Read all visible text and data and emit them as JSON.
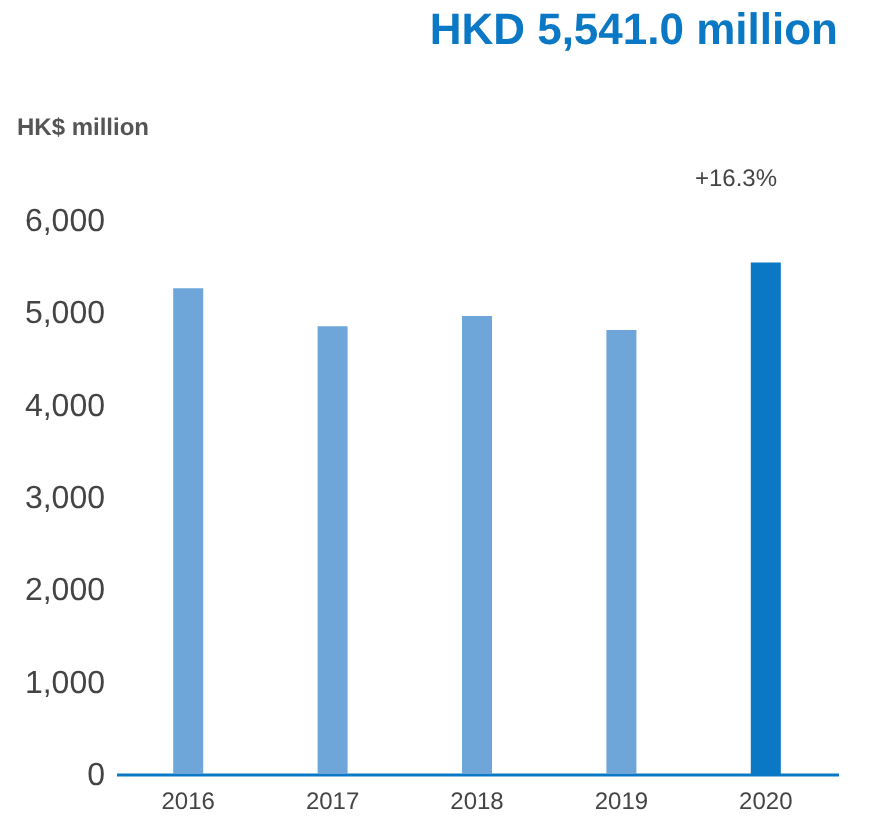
{
  "chart_data": {
    "type": "bar",
    "title": "HKD 5,541.0 million",
    "ylabel": "HK$ million",
    "categories": [
      "2016",
      "2017",
      "2018",
      "2019",
      "2020"
    ],
    "values": [
      5260,
      4850,
      4960,
      4810,
      5541
    ],
    "colors": [
      "#6fa6d9",
      "#6fa6d9",
      "#6fa6d9",
      "#6fa6d9",
      "#0a78c4"
    ],
    "ylim": [
      0,
      6000
    ],
    "yticks": [
      0,
      {
        "value": 1000,
        "label": "1,000"
      },
      {
        "value": 2000,
        "label": "2,000"
      },
      {
        "value": 3000,
        "label": "3,000"
      },
      {
        "value": 4000,
        "label": "4,000"
      },
      {
        "value": 5000,
        "label": "5,000"
      },
      {
        "value": 6000,
        "label": "6,000"
      }
    ],
    "grid": false,
    "annotations": [
      "+16.3%"
    ]
  }
}
